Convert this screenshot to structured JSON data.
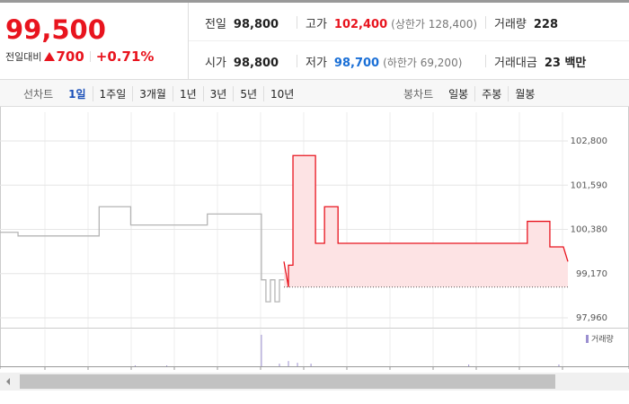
{
  "quote": {
    "price": "99,500",
    "change_label": "전일대비",
    "change": "700",
    "change_rate": "+0.71%",
    "items": [
      {
        "label": "전일",
        "value": "98,800"
      },
      {
        "label": "고가",
        "value": "102,400",
        "note": "(상한가 128,400)",
        "color": "#e8141e"
      },
      {
        "label": "거래량",
        "value": "228"
      },
      {
        "label": "시가",
        "value": "98,800"
      },
      {
        "label": "저가",
        "value": "98,700",
        "note": "(하한가 69,200)",
        "color": "#1a6fd6"
      },
      {
        "label": "거래대금",
        "value": "23 백만"
      }
    ]
  },
  "tabs": {
    "line_label": "선차트",
    "line": [
      "1일",
      "1주일",
      "3개월",
      "1년",
      "3년",
      "5년",
      "10년"
    ],
    "active": "1일",
    "candle_label": "봉차트",
    "candle": [
      "일봉",
      "주봉",
      "월봉"
    ]
  },
  "chart_data": {
    "type": "line",
    "xlim": [
      0,
      126
    ],
    "ylim": [
      97960,
      102800
    ],
    "yticks": [
      {
        "value": 97960,
        "label": "97,960"
      },
      {
        "value": 99170,
        "label": "99,170"
      },
      {
        "value": 100380,
        "label": "100,380"
      },
      {
        "value": 101590,
        "label": "101,590"
      },
      {
        "value": 102800,
        "label": "102,800"
      }
    ],
    "reference_line": 98800,
    "series": [
      {
        "color": "#b5b5b5",
        "x": [
          0,
          4,
          4,
          22,
          22,
          29,
          29,
          46,
          46,
          58,
          58,
          59,
          59,
          60,
          60,
          61,
          61,
          62,
          62,
          63
        ],
        "values": [
          100300,
          100300,
          100200,
          100200,
          101000,
          101000,
          100500,
          100500,
          100800,
          100800,
          99000,
          99000,
          98400,
          98400,
          99000,
          99000,
          98400,
          98400,
          99000,
          99000
        ]
      },
      {
        "color": "#e8141e",
        "fill": "#fde3e4",
        "x": [
          63,
          64,
          64,
          65,
          65,
          70,
          70,
          72,
          72,
          75,
          75,
          117,
          117,
          122,
          122,
          125,
          126
        ],
        "values": [
          99500,
          98800,
          99400,
          99400,
          102400,
          102400,
          100000,
          100000,
          101000,
          101000,
          100000,
          100000,
          100600,
          100600,
          99900,
          99900,
          99500
        ]
      }
    ],
    "volume": {
      "name": "거래량",
      "color": "#9b8fd0",
      "ylim": [
        0,
        40
      ],
      "x": [
        30,
        37,
        58,
        62,
        64,
        66,
        69,
        104,
        124
      ],
      "values": [
        1,
        1,
        36,
        3,
        6,
        4,
        3,
        2,
        2
      ]
    }
  }
}
